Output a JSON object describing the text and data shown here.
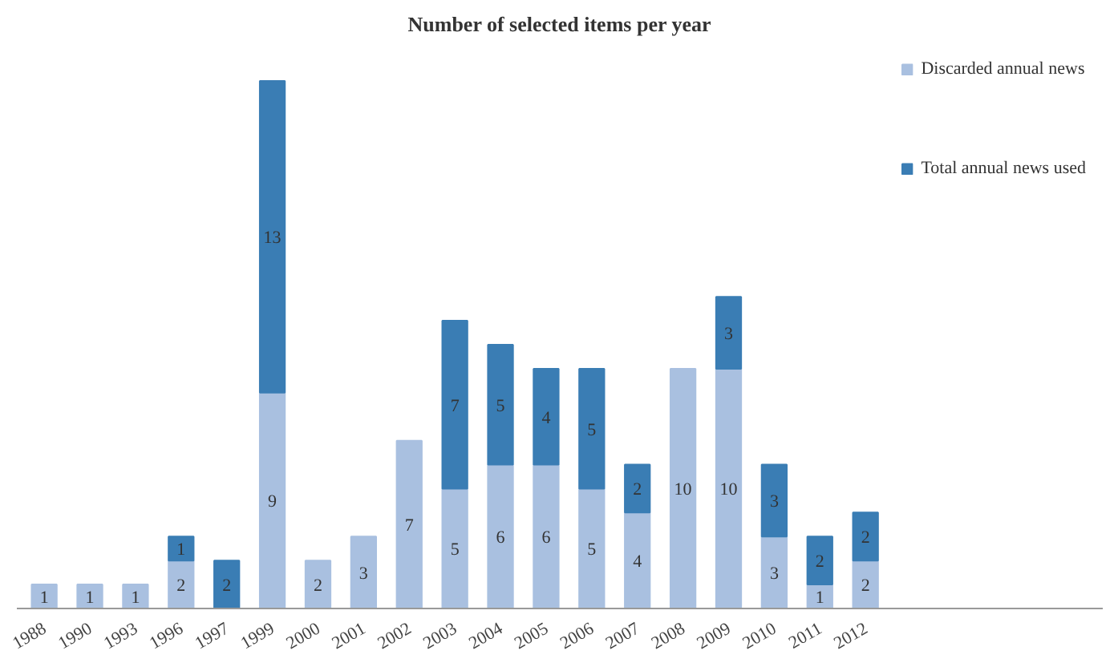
{
  "chart_data": {
    "type": "bar",
    "title": "Number of selected items per year",
    "stacked": true,
    "data_labels": true,
    "legend": "right",
    "grid": false,
    "categories": [
      "1988",
      "1990",
      "1993",
      "1996",
      "1997",
      "1999",
      "2000",
      "2001",
      "2002",
      "2003",
      "2004",
      "2005",
      "2006",
      "2007",
      "2008",
      "2009",
      "2010",
      "2011",
      "2012"
    ],
    "series": [
      {
        "name": "Discarded annual news",
        "color": "#a9c0e0",
        "values": [
          1,
          1,
          1,
          2,
          null,
          9,
          2,
          3,
          7,
          5,
          6,
          6,
          5,
          4,
          10,
          10,
          3,
          1,
          2
        ]
      },
      {
        "name": "Total annual news used",
        "color": "#3a7db4",
        "values": [
          null,
          null,
          null,
          1,
          2,
          13,
          null,
          null,
          null,
          7,
          5,
          4,
          5,
          2,
          null,
          3,
          3,
          2,
          2
        ]
      }
    ]
  }
}
